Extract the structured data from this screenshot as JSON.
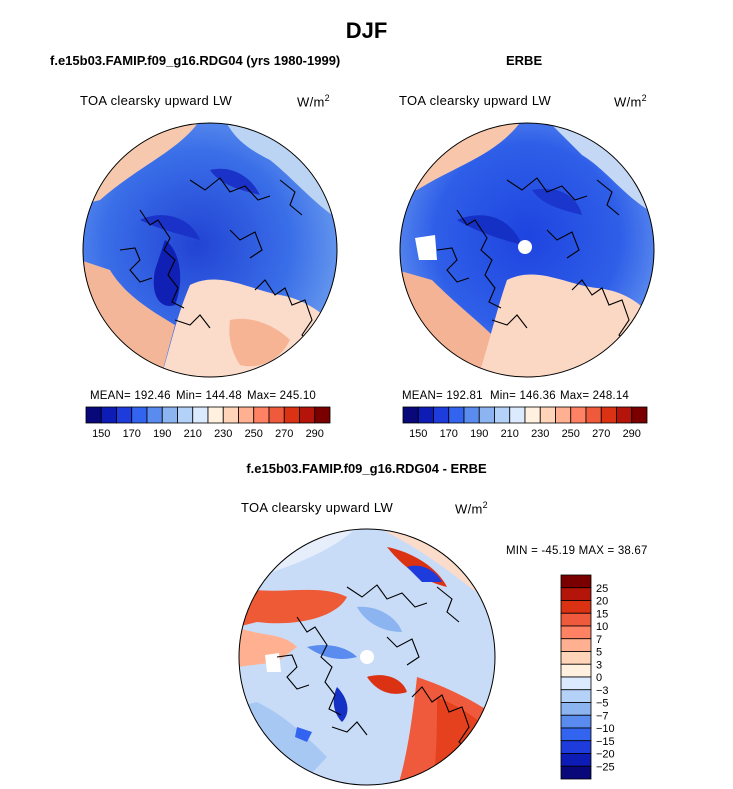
{
  "title": "DJF",
  "panels": [
    {
      "id": "model",
      "subtitle": "f.e15b03.FAMIP.f09_g16.RDG04 (yrs 1980-1999)",
      "field_label": "TOA clearsky upward LW",
      "units": "W/m",
      "units_sup": "2",
      "mean": "MEAN= 192.46",
      "min": "Min= 144.48",
      "max": "Max= 245.10"
    },
    {
      "id": "obs",
      "subtitle": "ERBE",
      "field_label": "TOA clearsky upward LW",
      "units": "W/m",
      "units_sup": "2",
      "mean": "MEAN= 192.81",
      "min": "Min= 146.36",
      "max": "Max= 248.14"
    },
    {
      "id": "diff",
      "subtitle": "f.e15b03.FAMIP.f09_g16.RDG04 - ERBE",
      "field_label": "TOA clearsky upward LW",
      "units": "W/m",
      "units_sup": "2",
      "minmax": "MIN = -45.19 MAX =  38.67"
    }
  ],
  "colorbars": {
    "horizontal": {
      "labels": [
        "150",
        "170",
        "190",
        "210",
        "230",
        "250",
        "270",
        "290"
      ],
      "colors": [
        "#08087a",
        "#0c1cb4",
        "#1e3cdc",
        "#3264f0",
        "#5a8cf0",
        "#8cb4f0",
        "#b4d2f8",
        "#dceaff",
        "#fff0e0",
        "#ffd4b8",
        "#ffb090",
        "#ff8264",
        "#f05a3c",
        "#dc3214",
        "#b4140a",
        "#7a0000"
      ]
    },
    "vertical": {
      "labels": [
        "25",
        "20",
        "15",
        "10",
        "7",
        "5",
        "3",
        "0",
        "−3",
        "−5",
        "−7",
        "−10",
        "−15",
        "−20",
        "−25"
      ],
      "colors": [
        "#7a0000",
        "#b4140a",
        "#dc3214",
        "#f05a3c",
        "#ff8264",
        "#ffb090",
        "#ffd4b8",
        "#fff0e0",
        "#dceaff",
        "#b4d2f8",
        "#8cb4f0",
        "#5a8cf0",
        "#3264f0",
        "#1e3cdc",
        "#0c1cb4",
        "#08087a"
      ]
    }
  }
}
